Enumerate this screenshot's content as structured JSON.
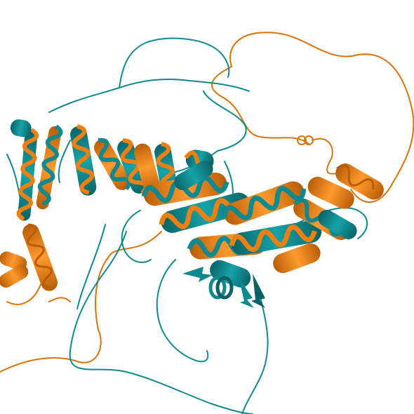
{
  "scene": {
    "background": "#ffffff",
    "subject": "protein-structure-superposition",
    "chains": [
      {
        "id": "chain-a",
        "color": "#0e8a8f",
        "shade": "#0a6266"
      },
      {
        "id": "chain-b",
        "color": "#ef7f0f",
        "shade": "#b85c05"
      }
    ]
  }
}
